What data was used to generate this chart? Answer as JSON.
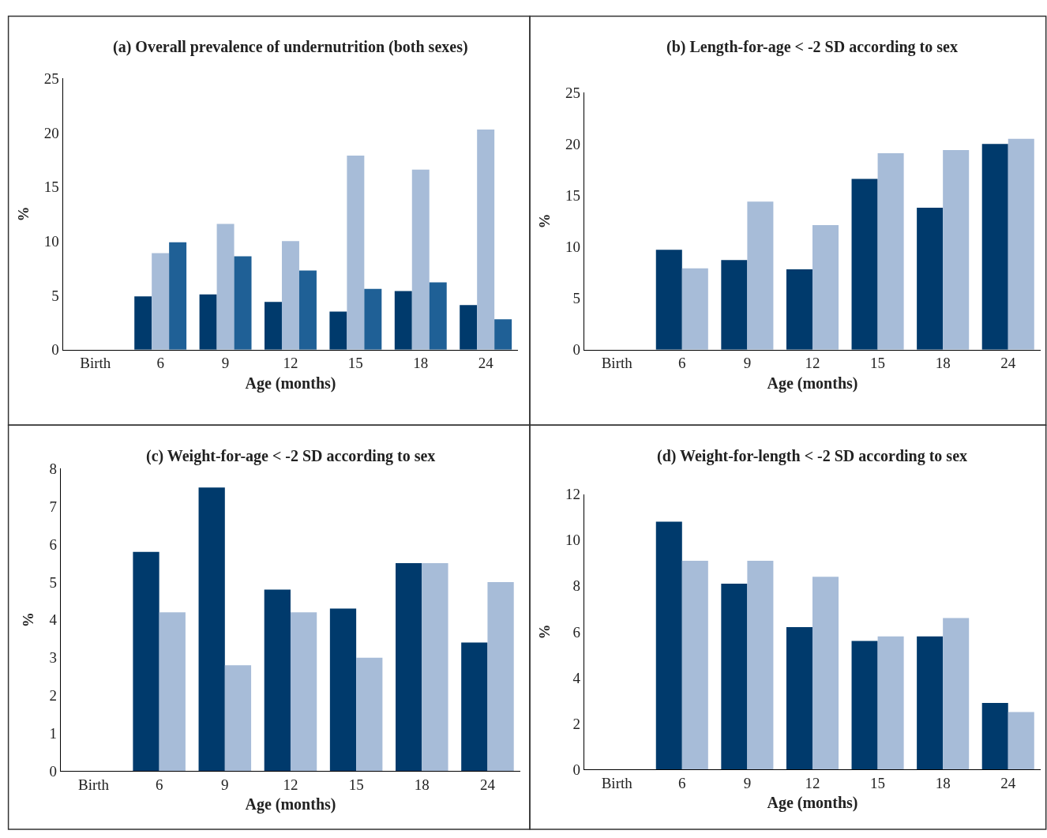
{
  "chart_data": [
    {
      "type": "bar",
      "title": "(a) Overall prevalence of undernutrition (both sexes)",
      "xlabel": "Age (months)",
      "ylabel": "%",
      "categories": [
        "Birth",
        "6",
        "9",
        "12",
        "15",
        "18",
        "24"
      ],
      "series": [
        {
          "color": "#003a6c",
          "values": [
            null,
            4.9,
            5.1,
            4.4,
            3.5,
            5.4,
            4.1
          ]
        },
        {
          "color": "#a7bcd8",
          "values": [
            null,
            8.9,
            11.6,
            10.0,
            17.9,
            16.6,
            20.3
          ]
        },
        {
          "color": "#1f6096",
          "values": [
            null,
            9.9,
            8.6,
            7.3,
            5.6,
            6.2,
            2.8
          ]
        }
      ],
      "ylim": [
        0,
        25
      ],
      "yticks": [
        0,
        5,
        10,
        15,
        20,
        25
      ]
    },
    {
      "type": "bar",
      "title": "(b) Length-for-age < -2 SD according to sex",
      "xlabel": "Age (months)",
      "ylabel": "%",
      "categories": [
        "Birth",
        "6",
        "9",
        "12",
        "15",
        "18",
        "24"
      ],
      "series": [
        {
          "color": "#003a6c",
          "values": [
            null,
            9.7,
            8.7,
            7.8,
            16.6,
            13.8,
            20.0
          ]
        },
        {
          "color": "#a7bcd8",
          "values": [
            null,
            7.9,
            14.4,
            12.1,
            19.1,
            19.4,
            20.5
          ]
        }
      ],
      "ylim": [
        0,
        25
      ],
      "yticks": [
        0,
        5,
        10,
        15,
        20,
        25
      ]
    },
    {
      "type": "bar",
      "title": "(c) Weight-for-age < -2 SD according to sex",
      "xlabel": "Age (months)",
      "ylabel": "%",
      "categories": [
        "Birth",
        "6",
        "9",
        "12",
        "15",
        "18",
        "24"
      ],
      "series": [
        {
          "color": "#003a6c",
          "values": [
            null,
            5.8,
            7.5,
            4.8,
            4.3,
            5.5,
            3.4
          ]
        },
        {
          "color": "#a7bcd8",
          "values": [
            null,
            4.2,
            2.8,
            4.2,
            3.0,
            5.5,
            5.0
          ]
        }
      ],
      "ylim": [
        0,
        8
      ],
      "yticks": [
        0,
        1,
        2,
        3,
        4,
        5,
        6,
        7,
        8
      ]
    },
    {
      "type": "bar",
      "title": "(d) Weight-for-length < -2 SD according to sex",
      "xlabel": "Age (months)",
      "ylabel": "%",
      "categories": [
        "Birth",
        "6",
        "9",
        "12",
        "15",
        "18",
        "24"
      ],
      "series": [
        {
          "color": "#003a6c",
          "values": [
            null,
            10.8,
            8.1,
            6.2,
            5.6,
            5.8,
            2.9
          ]
        },
        {
          "color": "#a7bcd8",
          "values": [
            null,
            9.1,
            9.1,
            8.4,
            5.8,
            6.6,
            2.5
          ]
        }
      ],
      "ylim": [
        0,
        12
      ],
      "yticks": [
        0,
        2,
        4,
        6,
        8,
        10,
        12
      ]
    }
  ]
}
